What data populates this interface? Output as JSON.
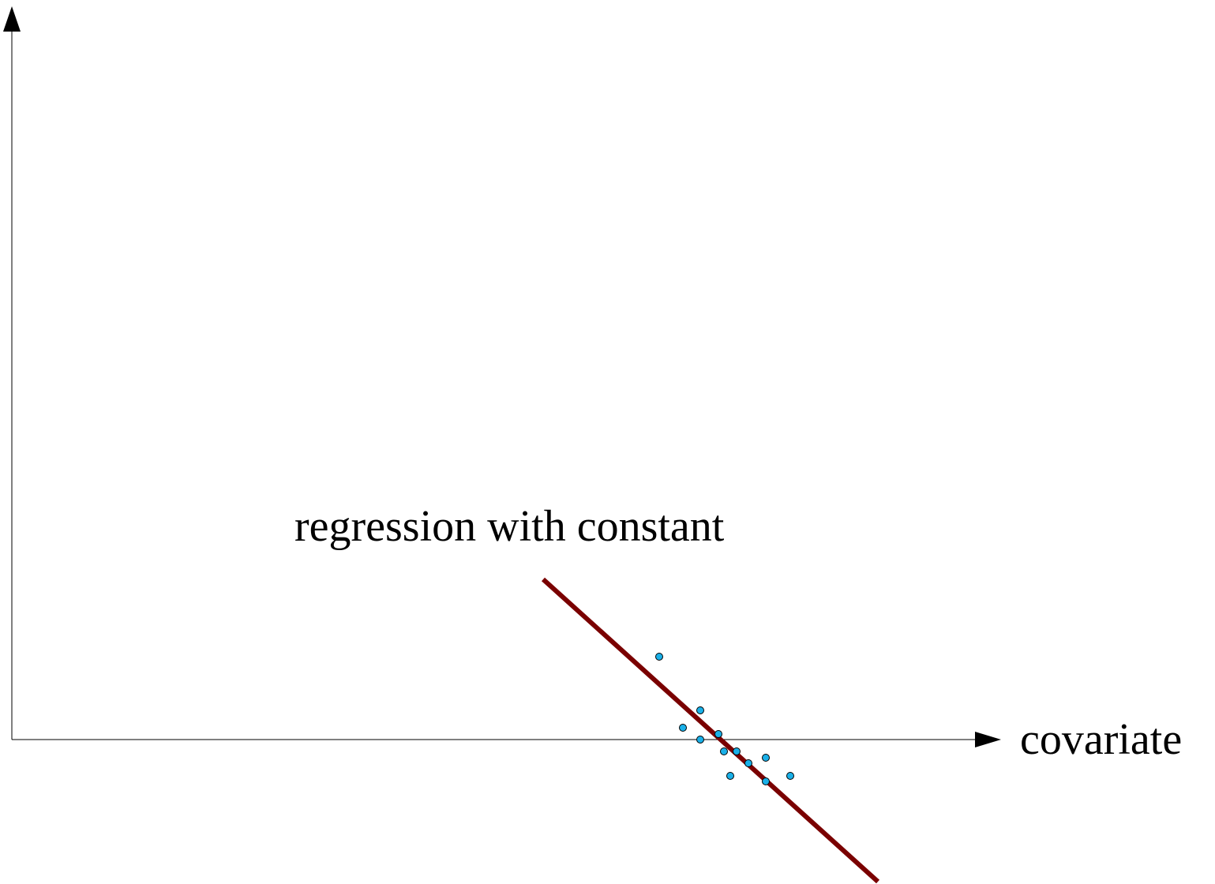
{
  "chart_data": {
    "type": "scatter",
    "title": "",
    "xlabel": "covariate",
    "ylabel": "",
    "grid": false,
    "annotations": [
      {
        "text": "regression with constant",
        "target": "regression-line"
      }
    ],
    "points": [
      {
        "x": 820,
        "y": 105
      },
      {
        "x": 872,
        "y": 37
      },
      {
        "x": 850,
        "y": 15
      },
      {
        "x": 895,
        "y": 7
      },
      {
        "x": 872,
        "y": 0
      },
      {
        "x": 902,
        "y": -15
      },
      {
        "x": 918,
        "y": -15
      },
      {
        "x": 933,
        "y": -30
      },
      {
        "x": 955,
        "y": -23
      },
      {
        "x": 910,
        "y": -46
      },
      {
        "x": 955,
        "y": -53
      },
      {
        "x": 986,
        "y": -46
      }
    ],
    "regression_line": {
      "label": "regression with constant",
      "x": [
        673,
        1097
      ],
      "y": [
        203,
        -180
      ]
    }
  },
  "colors": {
    "axis": "#000000",
    "points_fill": "#1ab0e8",
    "points_stroke": "#000000",
    "regression_line": "#7a0000",
    "text": "#000000"
  }
}
